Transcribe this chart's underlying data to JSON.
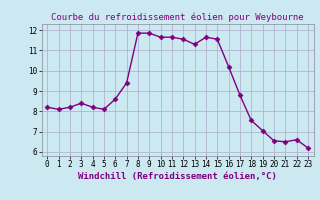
{
  "x": [
    0,
    1,
    2,
    3,
    4,
    5,
    6,
    7,
    8,
    9,
    10,
    11,
    12,
    13,
    14,
    15,
    16,
    17,
    18,
    19,
    20,
    21,
    22,
    23
  ],
  "y": [
    8.2,
    8.1,
    8.2,
    8.4,
    8.2,
    8.1,
    8.6,
    9.4,
    11.85,
    11.85,
    11.65,
    11.65,
    11.55,
    11.3,
    11.65,
    11.55,
    10.2,
    8.8,
    7.55,
    7.05,
    6.55,
    6.5,
    6.6,
    6.2
  ],
  "line_color": "#800080",
  "marker": "D",
  "marker_size": 2.5,
  "bg_color": "#cce8f0",
  "grid_color": "#aaaacc",
  "title": "Courbe du refroidissement éolien pour Weybourne",
  "xlabel": "Windchill (Refroidissement éolien,°C)",
  "ylim": [
    5.8,
    12.3
  ],
  "yticks": [
    6,
    7,
    8,
    9,
    10,
    11,
    12
  ],
  "xticks": [
    0,
    1,
    2,
    3,
    4,
    5,
    6,
    7,
    8,
    9,
    10,
    11,
    12,
    13,
    14,
    15,
    16,
    17,
    18,
    19,
    20,
    21,
    22,
    23
  ],
  "title_fontsize": 6.5,
  "label_fontsize": 6.5,
  "tick_fontsize": 5.5
}
